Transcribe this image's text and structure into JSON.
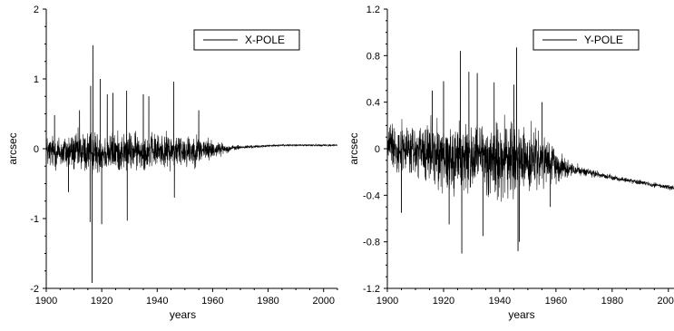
{
  "chart_data": [
    {
      "type": "line",
      "title": "",
      "xlabel": "years",
      "ylabel": "arcsec",
      "xlim": [
        1900,
        2005
      ],
      "ylim": [
        -2,
        2
      ],
      "x_ticks": [
        1900,
        1920,
        1940,
        1960,
        1980,
        2000
      ],
      "x_tick_labels": [
        "1900",
        "1920",
        "1940",
        "1960",
        "1980",
        "2000"
      ],
      "y_ticks": [
        -2,
        -1,
        0,
        1,
        2
      ],
      "y_tick_labels": [
        "-2",
        "-1",
        "0",
        "1",
        "2"
      ],
      "grid": false,
      "legend_position": "top-right",
      "series": [
        {
          "name": "X-POLE",
          "color": "#000000",
          "x": [
            1900,
            1905,
            1910,
            1915,
            1920,
            1925,
            1930,
            1935,
            1940,
            1945,
            1950,
            1955,
            1960,
            1965,
            1970,
            1975,
            1980,
            1985,
            1990,
            1995,
            2000,
            2005
          ],
          "y": [
            -0.05,
            -0.05,
            -0.05,
            -0.05,
            -0.05,
            -0.05,
            -0.04,
            -0.04,
            -0.03,
            -0.03,
            -0.02,
            -0.02,
            -0.01,
            0.0,
            0.02,
            0.03,
            0.04,
            0.05,
            0.05,
            0.05,
            0.05,
            0.05
          ],
          "spread": [
            0.35,
            0.35,
            0.4,
            0.45,
            0.4,
            0.4,
            0.4,
            0.35,
            0.35,
            0.35,
            0.35,
            0.3,
            0.2,
            0.08,
            0.04,
            0.03,
            0.02,
            0.02,
            0.02,
            0.02,
            0.02,
            0.02
          ],
          "spikes": [
            {
              "x": 1916.5,
              "y": -1.92
            },
            {
              "x": 1916.8,
              "y": 1.48
            },
            {
              "x": 1916.0,
              "y": 0.9
            },
            {
              "x": 1915.8,
              "y": -1.05
            },
            {
              "x": 1919.5,
              "y": 1.0
            },
            {
              "x": 1920.0,
              "y": -1.08
            },
            {
              "x": 1922.0,
              "y": 0.78
            },
            {
              "x": 1924.0,
              "y": 0.8
            },
            {
              "x": 1929.0,
              "y": 0.83
            },
            {
              "x": 1929.2,
              "y": -1.03
            },
            {
              "x": 1935.0,
              "y": 0.78
            },
            {
              "x": 1937.0,
              "y": 0.75
            },
            {
              "x": 1946.0,
              "y": 0.96
            },
            {
              "x": 1946.2,
              "y": -0.7
            },
            {
              "x": 1955.0,
              "y": 0.55
            },
            {
              "x": 1903.0,
              "y": 0.48
            },
            {
              "x": 1908.0,
              "y": -0.62
            },
            {
              "x": 1912.0,
              "y": 0.55
            }
          ]
        }
      ]
    },
    {
      "type": "line",
      "title": "",
      "xlabel": "years",
      "ylabel": "arcsec",
      "xlim": [
        1900,
        2002
      ],
      "ylim": [
        -1.2,
        1.2
      ],
      "x_ticks": [
        1900,
        1920,
        1940,
        1960,
        1980,
        2000
      ],
      "x_tick_labels": [
        "1900",
        "1920",
        "1940",
        "1960",
        "1980",
        "2000"
      ],
      "y_ticks": [
        -1.2,
        -0.8,
        -0.4,
        0,
        0.4,
        0.8,
        1.2
      ],
      "y_tick_labels": [
        "-1.2",
        "-0.8",
        "-0.4",
        "0",
        "0.4",
        "0.8",
        "1.2"
      ],
      "grid": false,
      "legend_position": "top-right",
      "series": [
        {
          "name": "Y-POLE",
          "color": "#000000",
          "x": [
            1900,
            1905,
            1910,
            1915,
            1920,
            1925,
            1930,
            1935,
            1940,
            1945,
            1950,
            1955,
            1960,
            1965,
            1970,
            1975,
            1980,
            1985,
            1990,
            1995,
            2000,
            2005
          ],
          "y": [
            0.05,
            0.0,
            -0.03,
            -0.05,
            -0.06,
            -0.07,
            -0.08,
            -0.09,
            -0.09,
            -0.1,
            -0.1,
            -0.12,
            -0.14,
            -0.17,
            -0.2,
            -0.22,
            -0.25,
            -0.27,
            -0.29,
            -0.31,
            -0.33,
            -0.35
          ],
          "spread": [
            0.25,
            0.3,
            0.35,
            0.4,
            0.4,
            0.45,
            0.45,
            0.45,
            0.5,
            0.5,
            0.4,
            0.3,
            0.2,
            0.08,
            0.05,
            0.04,
            0.03,
            0.03,
            0.03,
            0.03,
            0.03,
            0.03
          ],
          "spikes": [
            {
              "x": 1926.0,
              "y": 0.84
            },
            {
              "x": 1926.5,
              "y": -0.9
            },
            {
              "x": 1929.0,
              "y": 0.66
            },
            {
              "x": 1932.0,
              "y": 0.65
            },
            {
              "x": 1934.0,
              "y": -0.75
            },
            {
              "x": 1938.0,
              "y": 0.57
            },
            {
              "x": 1945.0,
              "y": 0.55
            },
            {
              "x": 1946.0,
              "y": 0.87
            },
            {
              "x": 1946.5,
              "y": -0.88
            },
            {
              "x": 1947.0,
              "y": -0.8
            },
            {
              "x": 1920.0,
              "y": 0.58
            },
            {
              "x": 1916.0,
              "y": 0.5
            },
            {
              "x": 1922.0,
              "y": -0.65
            },
            {
              "x": 1905.0,
              "y": -0.55
            },
            {
              "x": 1955.0,
              "y": 0.4
            },
            {
              "x": 1958.0,
              "y": -0.5
            }
          ]
        }
      ]
    }
  ]
}
